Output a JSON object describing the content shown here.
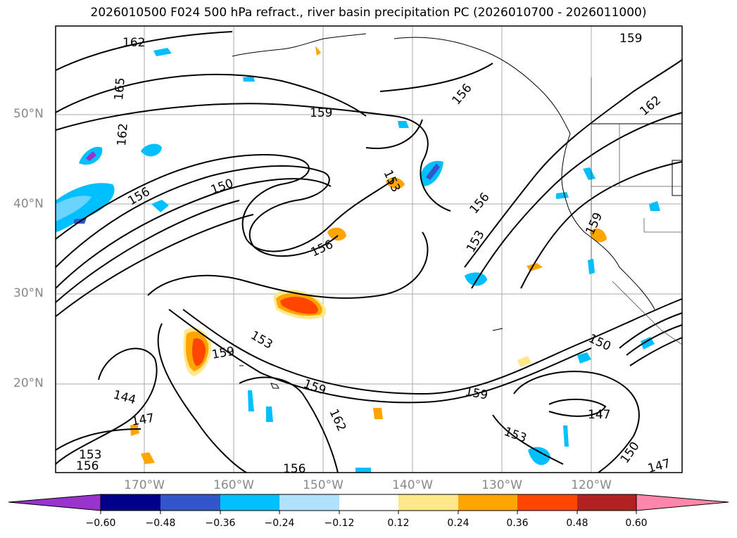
{
  "title": "2026010500 F024 500 hPa refract., river basin precipitation PC (2026010700 - 2026011000)",
  "lat_labels": [
    "50°N",
    "40°N",
    "30°N",
    "20°N"
  ],
  "lon_labels": [
    "170°W",
    "160°W",
    "150°W",
    "140°W",
    "130°W",
    "120°W"
  ],
  "contour_labels": [
    "162",
    "165",
    "162",
    "156",
    "159",
    "153",
    "150",
    "156",
    "156",
    "153",
    "156",
    "159",
    "162",
    "159",
    "153",
    "159",
    "144",
    "147",
    "153",
    "156",
    "159",
    "162",
    "159",
    "153",
    "147",
    "150",
    "150",
    "147",
    "156"
  ],
  "colorbar": {
    "ticks": [
      "−0.60",
      "−0.48",
      "−0.36",
      "−0.24",
      "−0.12",
      "0.12",
      "0.24",
      "0.36",
      "0.48",
      "0.60"
    ],
    "colors": [
      "#9933cc",
      "#00008b",
      "#3355cc",
      "#00bfff",
      "#b0e2ff",
      "#ffffff",
      "#ffe88a",
      "#ffa500",
      "#ff4500",
      "#b22222",
      "#ff88aa"
    ]
  }
}
